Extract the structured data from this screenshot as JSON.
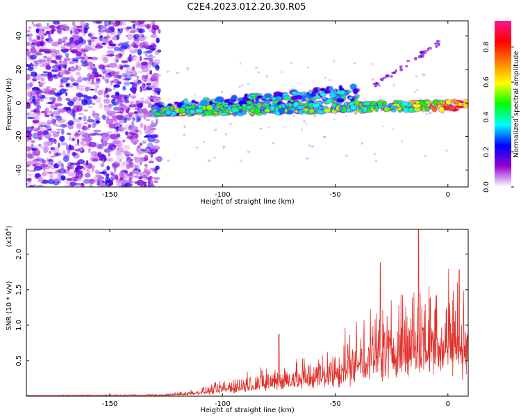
{
  "title": "C2E4.2023.012.20.30.R05",
  "chart_data": [
    {
      "type": "heatmap",
      "name": "spectrogram",
      "xlabel": "Height of straight line (km)",
      "ylabel": "Frequency (Hz)",
      "xlim": [
        -187,
        9
      ],
      "ylim": [
        -50,
        49
      ],
      "x_ticks": [
        -150,
        -100,
        -50,
        0
      ],
      "y_ticks": [
        -40,
        -20,
        0,
        20,
        40
      ],
      "colorbar": {
        "label": "Normalized spectral amplitude",
        "range": [
          0.0,
          0.95
        ],
        "ticks": [
          "0.0",
          "0.2",
          "0.4",
          "0.6",
          "0.8"
        ],
        "colors": [
          "#ffffff",
          "#9400d3",
          "#0000ff",
          "#00ffff",
          "#00ff00",
          "#ffff00",
          "#ff8000",
          "#ff0000",
          "#ff1493"
        ]
      },
      "features": {
        "noise_region_x": [
          -187,
          -128
        ],
        "main_band": {
          "x": [
            -130,
            9
          ],
          "freq_start": -5,
          "freq_end": -1
        },
        "secondary_band": {
          "x": [
            -130,
            -40
          ],
          "freq_start": -4,
          "freq_end": 6
        },
        "rising_line": {
          "x": [
            -33,
            -2
          ],
          "freq_start": 10,
          "freq_end": 38
        }
      }
    },
    {
      "type": "line",
      "name": "snr",
      "xlabel": "Height of straight line (km)",
      "ylabel": "SNR (10 * v/v)",
      "y_multiplier": "(x10",
      "y_exponent": "4",
      "xlim": [
        -187,
        9
      ],
      "ylim": [
        0,
        2.35
      ],
      "x_ticks": [
        -150,
        -100,
        -50,
        0
      ],
      "y_ticks": [
        "0.5",
        "1.0",
        "1.5",
        "2.0"
      ],
      "line_color": "#e0302a",
      "envelope": {
        "x": [
          -187,
          -130,
          -125,
          -115,
          -105,
          -95,
          -85,
          -75,
          -65,
          -55,
          -45,
          -35,
          -25,
          -15,
          -5,
          0,
          5,
          9
        ],
        "y": [
          0.01,
          0.02,
          0.03,
          0.08,
          0.15,
          0.25,
          0.35,
          0.45,
          0.5,
          0.6,
          0.8,
          1.1,
          1.3,
          1.5,
          1.6,
          1.7,
          1.5,
          1.3
        ]
      },
      "peaks": [
        {
          "x": -75,
          "y": 0.87
        },
        {
          "x": -30,
          "y": 1.88
        },
        {
          "x": -13,
          "y": 2.35
        },
        {
          "x": 5,
          "y": 1.78
        }
      ]
    }
  ]
}
